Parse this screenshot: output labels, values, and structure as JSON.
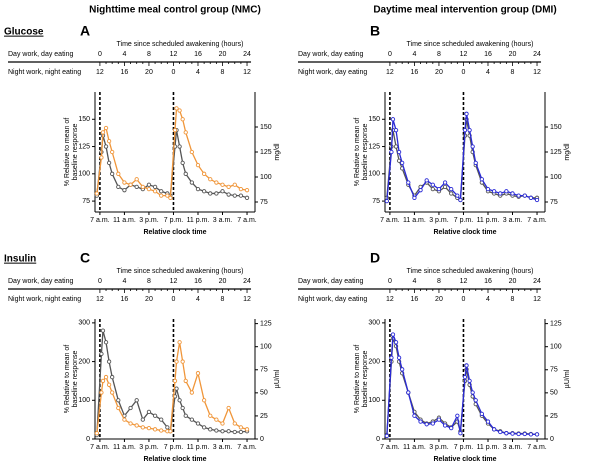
{
  "chart_data": [
    {
      "type": "line",
      "panel": "A",
      "column_title": "Nighttime meal control group (NMC)",
      "row_label": "Glucose",
      "top_axis": {
        "title": "Time since scheduled awakening (hours)",
        "rows": [
          {
            "label": "Day work, day eating",
            "color": "#000000",
            "ticks": [
              0,
              4,
              8,
              12,
              16,
              20,
              24
            ]
          },
          {
            "label": "Night  work, night eating",
            "color": "#f0963a",
            "ticks": [
              12,
              16,
              20,
              0,
              4,
              8,
              12
            ]
          }
        ]
      },
      "xlabel": "Relative clock time",
      "ylabel": [
        "% Relative to mean of",
        "baseline response"
      ],
      "y2label": "mg/dl",
      "xlim": [
        -0.8,
        25.3
      ],
      "xticks": [
        {
          "value": 0,
          "label": "7 a.m."
        },
        {
          "value": 4,
          "label": "11 a.m."
        },
        {
          "value": 8,
          "label": "3 p.m."
        },
        {
          "value": 12,
          "label": "7 p.m."
        },
        {
          "value": 16,
          "label": "11 p.m."
        },
        {
          "value": 20,
          "label": "3 a.m."
        },
        {
          "value": 24,
          "label": "7 a.m."
        }
      ],
      "ylim": [
        65,
        175
      ],
      "yticks": [
        75,
        100,
        125,
        150
      ],
      "y2lim": [
        65,
        185
      ],
      "y2ticks": [
        75,
        100,
        125,
        150
      ],
      "vlines": [
        0,
        12
      ],
      "x": [
        -0.5,
        0.25,
        0.5,
        1,
        1.5,
        2,
        3,
        4,
        5,
        6,
        7,
        8,
        9,
        10,
        11,
        11.5,
        12.25,
        12.5,
        13,
        13.5,
        14,
        15,
        16,
        17,
        18,
        19,
        20,
        21,
        22,
        23,
        24
      ],
      "series": [
        {
          "name": "Day work, day eating",
          "color": "#555555",
          "values": [
            80,
            120,
            135,
            125,
            110,
            100,
            88,
            85,
            90,
            88,
            86,
            90,
            88,
            84,
            82,
            80,
            125,
            140,
            125,
            110,
            100,
            92,
            86,
            84,
            82,
            82,
            84,
            81,
            80,
            80,
            78
          ]
        },
        {
          "name": "Night  work, night eating",
          "color": "#f0963a",
          "values": [
            82,
            115,
            138,
            142,
            130,
            120,
            100,
            92,
            90,
            95,
            88,
            86,
            84,
            80,
            80,
            78,
            140,
            160,
            158,
            150,
            138,
            120,
            108,
            100,
            95,
            92,
            90,
            88,
            90,
            86,
            85
          ]
        }
      ]
    },
    {
      "type": "line",
      "panel": "B",
      "column_title": "Daytime meal intervention group (DMI)",
      "top_axis": {
        "title": "Time since scheduled awakening (hours)",
        "rows": [
          {
            "label": "Day work, day eating",
            "color": "#000000",
            "ticks": [
              0,
              4,
              8,
              12,
              16,
              20,
              24
            ]
          },
          {
            "label": "Night  work, day eating",
            "color": "#2a2ad6",
            "ticks": [
              12,
              16,
              20,
              0,
              4,
              8,
              12
            ]
          }
        ]
      },
      "xlabel": "Relative clock time",
      "ylabel": [
        "% Relative to mean of",
        "baseline response"
      ],
      "y2label": "mg/dl",
      "xlim": [
        -0.8,
        25.3
      ],
      "xticks": [
        {
          "value": 0,
          "label": "7 a.m."
        },
        {
          "value": 4,
          "label": "11 a.m."
        },
        {
          "value": 8,
          "label": "3 p.m."
        },
        {
          "value": 12,
          "label": "7 p.m."
        },
        {
          "value": 16,
          "label": "11 p.m."
        },
        {
          "value": 20,
          "label": "3 a.m."
        },
        {
          "value": 24,
          "label": "7 a.m."
        }
      ],
      "ylim": [
        65,
        175
      ],
      "yticks": [
        75,
        100,
        125,
        150
      ],
      "y2lim": [
        65,
        185
      ],
      "y2ticks": [
        75,
        100,
        125,
        150
      ],
      "vlines": [
        0,
        12
      ],
      "x": [
        -0.5,
        0.25,
        0.5,
        1,
        1.5,
        2,
        3,
        4,
        5,
        6,
        7,
        8,
        9,
        10,
        11,
        11.5,
        12.25,
        12.5,
        13,
        13.5,
        14,
        15,
        16,
        17,
        18,
        19,
        20,
        21,
        22,
        23,
        24
      ],
      "series": [
        {
          "name": "Day work, day eating",
          "color": "#555555",
          "values": [
            78,
            125,
            140,
            125,
            112,
            105,
            90,
            80,
            88,
            92,
            86,
            84,
            88,
            82,
            78,
            76,
            135,
            150,
            135,
            120,
            108,
            92,
            84,
            82,
            80,
            82,
            80,
            79,
            80,
            78,
            78
          ]
        },
        {
          "name": "Night  work, day eating",
          "color": "#2a2ad6",
          "values": [
            75,
            120,
            150,
            140,
            120,
            110,
            92,
            78,
            85,
            94,
            90,
            86,
            92,
            86,
            80,
            76,
            140,
            155,
            140,
            125,
            110,
            95,
            86,
            84,
            82,
            84,
            82,
            80,
            80,
            78,
            76
          ]
        }
      ]
    },
    {
      "type": "line",
      "panel": "C",
      "row_label": "Insulin",
      "top_axis": {
        "title": "Time since scheduled awakening (hours)",
        "rows": [
          {
            "label": "Day work, day eating",
            "color": "#000000",
            "ticks": [
              0,
              4,
              8,
              12,
              16,
              20,
              24
            ]
          },
          {
            "label": "Night  work, night eating",
            "color": "#f0963a",
            "ticks": [
              12,
              16,
              20,
              0,
              4,
              8,
              12
            ]
          }
        ]
      },
      "xlabel": "Relative clock time",
      "ylabel": [
        "% Relative to mean of",
        "baseline response"
      ],
      "y2label": "µU/ml",
      "xlim": [
        -0.8,
        25.3
      ],
      "xticks": [
        {
          "value": 0,
          "label": "7 a.m."
        },
        {
          "value": 4,
          "label": "11 a.m."
        },
        {
          "value": 8,
          "label": "3 p.m."
        },
        {
          "value": 12,
          "label": "7 p.m."
        },
        {
          "value": 16,
          "label": "11 p.m."
        },
        {
          "value": 20,
          "label": "3 a.m."
        },
        {
          "value": 24,
          "label": "7 a.m."
        }
      ],
      "ylim": [
        0,
        310
      ],
      "yticks": [
        0,
        100,
        200,
        300
      ],
      "y2lim": [
        0,
        130
      ],
      "y2ticks": [
        0,
        25,
        50,
        75,
        100,
        125
      ],
      "vlines": [
        0,
        12
      ],
      "x": [
        -0.5,
        0.25,
        0.5,
        1,
        1.5,
        2,
        3,
        4,
        5,
        6,
        7,
        8,
        9,
        10,
        11,
        11.5,
        12.25,
        12.5,
        13,
        13.5,
        14,
        15,
        16,
        17,
        18,
        19,
        20,
        21,
        22,
        23,
        24
      ],
      "series": [
        {
          "name": "Day work, day eating",
          "color": "#555555",
          "values": [
            10,
            220,
            280,
            250,
            200,
            160,
            100,
            60,
            80,
            100,
            50,
            70,
            60,
            50,
            30,
            20,
            110,
            130,
            100,
            80,
            60,
            50,
            40,
            30,
            25,
            22,
            20,
            20,
            18,
            18,
            20
          ]
        },
        {
          "name": "Night  work, night eating",
          "color": "#f0963a",
          "values": [
            15,
            120,
            150,
            160,
            140,
            120,
            80,
            50,
            40,
            35,
            30,
            28,
            25,
            22,
            20,
            20,
            150,
            200,
            250,
            200,
            150,
            120,
            170,
            100,
            60,
            50,
            40,
            80,
            40,
            30,
            25
          ]
        }
      ]
    },
    {
      "type": "line",
      "panel": "D",
      "top_axis": {
        "title": "Time since scheduled awakening (hours)",
        "rows": [
          {
            "label": "Day work, day eating",
            "color": "#000000",
            "ticks": [
              0,
              4,
              8,
              12,
              16,
              20,
              24
            ]
          },
          {
            "label": "Night  work, day eating",
            "color": "#2a2ad6",
            "ticks": [
              12,
              16,
              20,
              0,
              4,
              8,
              12
            ]
          }
        ]
      },
      "xlabel": "Relative clock time",
      "ylabel": [
        "% Relative to mean of",
        "baseline response"
      ],
      "y2label": "µU/ml",
      "xlim": [
        -0.8,
        25.3
      ],
      "xticks": [
        {
          "value": 0,
          "label": "7 a.m."
        },
        {
          "value": 4,
          "label": "11 a.m."
        },
        {
          "value": 8,
          "label": "3 p.m."
        },
        {
          "value": 12,
          "label": "7 p.m."
        },
        {
          "value": 16,
          "label": "11 p.m."
        },
        {
          "value": 20,
          "label": "3 a.m."
        },
        {
          "value": 24,
          "label": "7 a.m."
        }
      ],
      "ylim": [
        0,
        310
      ],
      "yticks": [
        0,
        100,
        200,
        300
      ],
      "y2lim": [
        0,
        130
      ],
      "y2ticks": [
        0,
        25,
        50,
        75,
        100,
        125
      ],
      "vlines": [
        0,
        12
      ],
      "x": [
        -0.5,
        0.25,
        0.5,
        1,
        1.5,
        2,
        3,
        4,
        5,
        6,
        7,
        8,
        9,
        10,
        11,
        11.5,
        12.25,
        12.5,
        13,
        13.5,
        14,
        15,
        16,
        17,
        18,
        19,
        20,
        21,
        22,
        23,
        24
      ],
      "series": [
        {
          "name": "Day work, day eating",
          "color": "#555555",
          "values": [
            10,
            200,
            260,
            240,
            200,
            170,
            120,
            70,
            50,
            40,
            45,
            55,
            40,
            30,
            45,
            20,
            150,
            180,
            140,
            110,
            90,
            60,
            40,
            25,
            20,
            15,
            15,
            14,
            14,
            13,
            12
          ]
        },
        {
          "name": "Night  work, day eating",
          "color": "#2a2ad6",
          "values": [
            8,
            210,
            270,
            250,
            210,
            180,
            120,
            60,
            45,
            38,
            40,
            50,
            35,
            28,
            60,
            15,
            160,
            190,
            150,
            120,
            100,
            65,
            45,
            25,
            18,
            15,
            14,
            13,
            13,
            12,
            12
          ]
        }
      ]
    }
  ]
}
